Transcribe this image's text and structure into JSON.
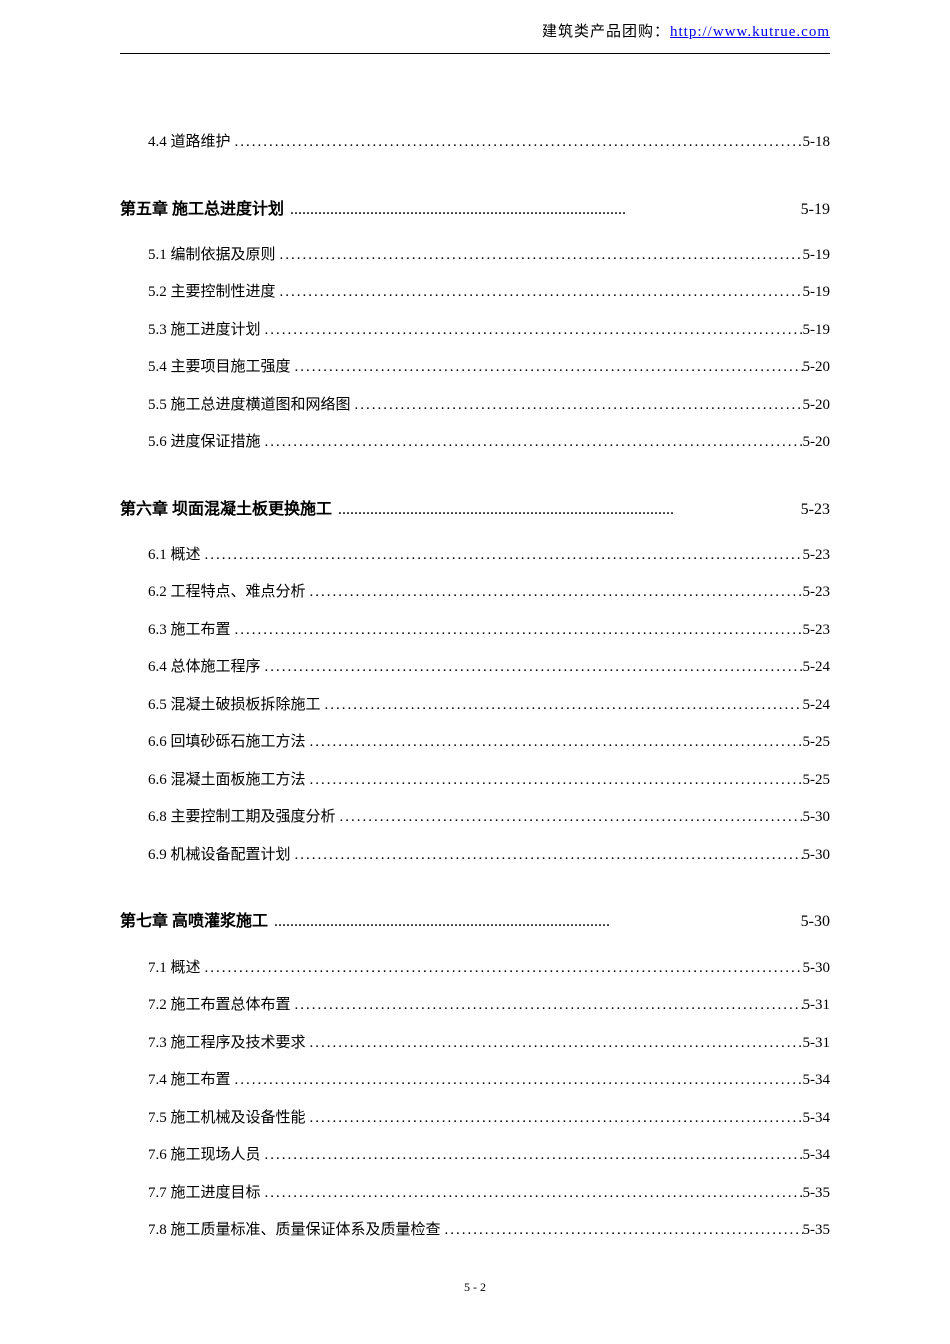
{
  "header": {
    "prefix": "建筑类产品团购：",
    "link_text": "http://www.kutrue.com"
  },
  "toc": {
    "entries": [
      {
        "type": "section",
        "title": "4.4 道路维护",
        "page": "5-18",
        "first": true
      },
      {
        "type": "chapter",
        "title": "第五章 施工总进度计划",
        "page": "5-19"
      },
      {
        "type": "section",
        "title": "5.1 编制依据及原则",
        "page": "5-19"
      },
      {
        "type": "section",
        "title": "5.2 主要控制性进度",
        "page": "5-19"
      },
      {
        "type": "section",
        "title": "5.3 施工进度计划",
        "page": "5-19"
      },
      {
        "type": "section",
        "title": "5.4 主要项目施工强度",
        "page": "5-20"
      },
      {
        "type": "section",
        "title": "5.5 施工总进度横道图和网络图",
        "page": "5-20"
      },
      {
        "type": "section",
        "title": "5.6 进度保证措施",
        "page": "5-20"
      },
      {
        "type": "chapter",
        "title": "第六章 坝面混凝土板更换施工",
        "page": "5-23"
      },
      {
        "type": "section",
        "title": "6.1 概述",
        "page": "5-23"
      },
      {
        "type": "section",
        "title": "6.2 工程特点、难点分析",
        "page": "5-23"
      },
      {
        "type": "section",
        "title": "6.3 施工布置",
        "page": "5-23"
      },
      {
        "type": "section",
        "title": "6.4 总体施工程序",
        "page": "5-24"
      },
      {
        "type": "section",
        "title": "6.5 混凝土破损板拆除施工",
        "page": "5-24"
      },
      {
        "type": "section",
        "title": "6.6 回填砂砾石施工方法",
        "page": "5-25"
      },
      {
        "type": "section",
        "title": "6.6 混凝土面板施工方法",
        "page": "5-25"
      },
      {
        "type": "section",
        "title": "6.8 主要控制工期及强度分析",
        "page": "5-30"
      },
      {
        "type": "section",
        "title": "6.9 机械设备配置计划",
        "page": "5-30"
      },
      {
        "type": "chapter",
        "title": "第七章 高喷灌浆施工",
        "page": "5-30"
      },
      {
        "type": "section",
        "title": "7.1 概述",
        "page": "5-30"
      },
      {
        "type": "section",
        "title": "7.2  施工布置总体布置",
        "page": "5-31"
      },
      {
        "type": "section",
        "title": "7.3 施工程序及技术要求",
        "page": "5-31"
      },
      {
        "type": "section",
        "title": "7.4 施工布置",
        "page": "5-34"
      },
      {
        "type": "section",
        "title": "7.5 施工机械及设备性能",
        "page": "5-34"
      },
      {
        "type": "section",
        "title": "7.6 施工现场人员",
        "page": "5-34"
      },
      {
        "type": "section",
        "title": "7.7 施工进度目标",
        "page": "5-35"
      },
      {
        "type": "section",
        "title": "7.8 施工质量标准、质量保证体系及质量检查",
        "page": "5-35"
      }
    ]
  },
  "page_number": "5 - 2",
  "style": {
    "section_dot_fill": "................................................................................................................................................",
    "chapter_dot_fill": "...................................................................................."
  }
}
